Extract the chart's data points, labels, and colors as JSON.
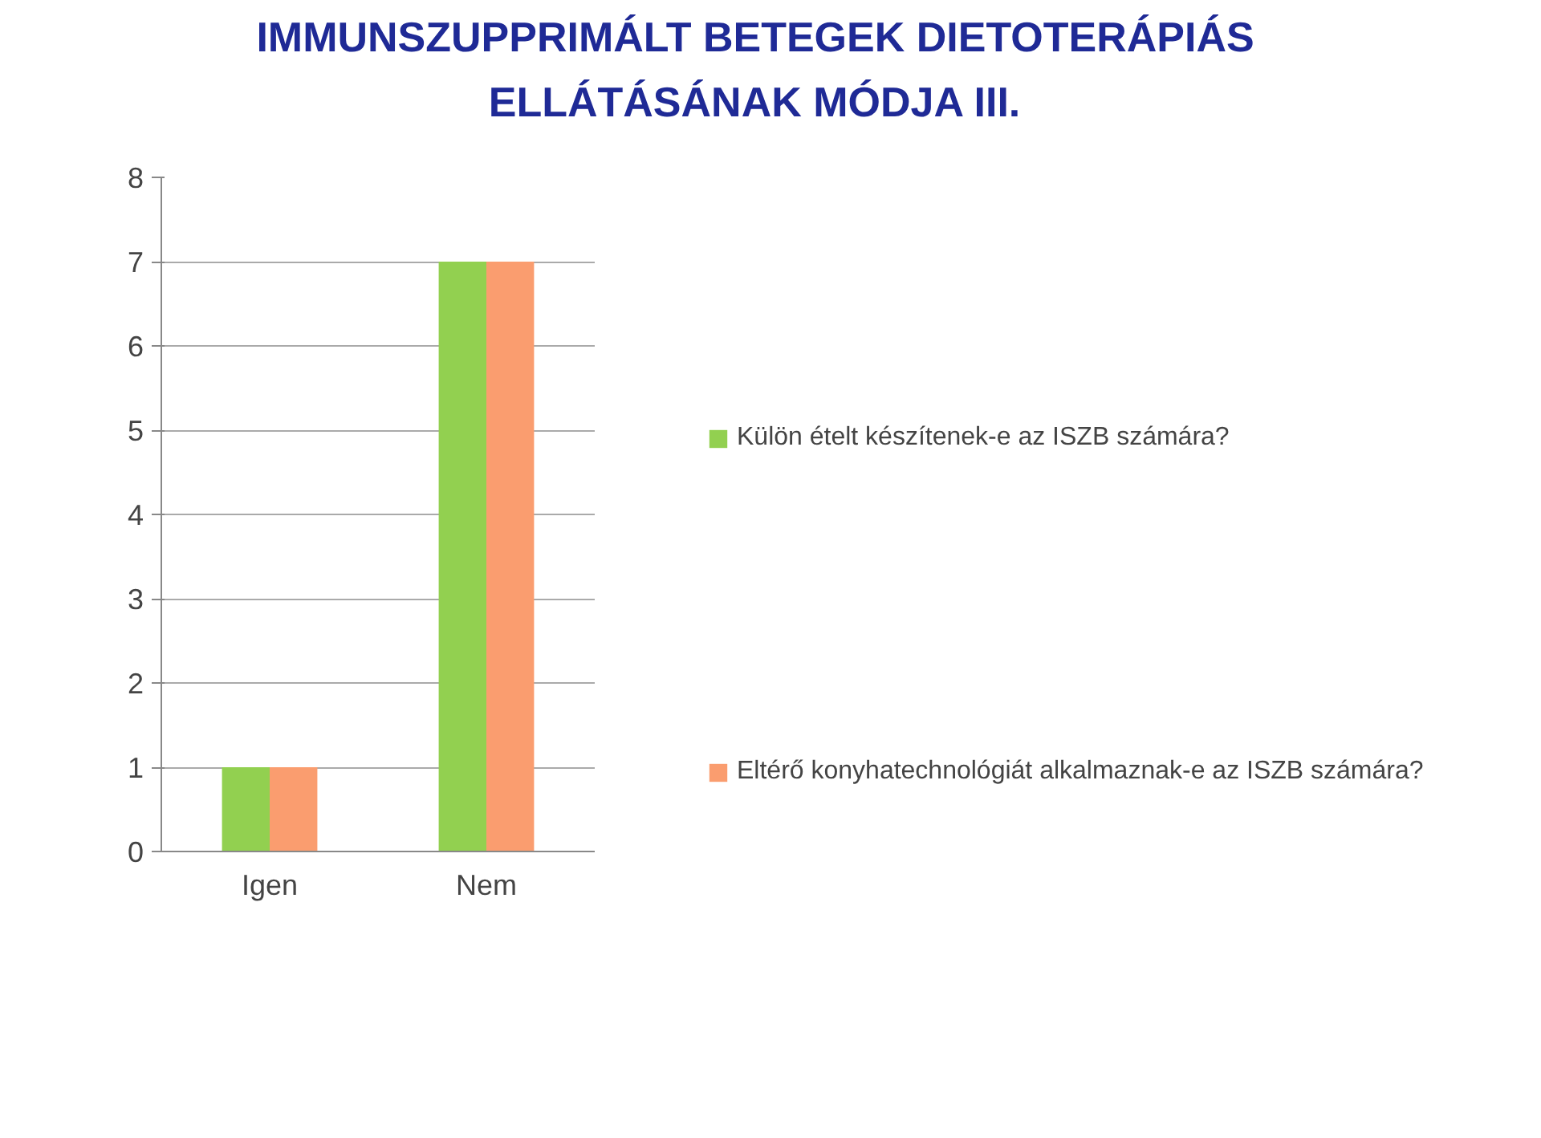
{
  "chart_data": {
    "type": "bar",
    "title": "IMMUNSZUPPRIMÁLT BETEGEK DIETOTERÁPIÁS\nELLÁTÁSÁNAK MÓDJA III.",
    "categories": [
      "Igen",
      "Nem"
    ],
    "series": [
      {
        "name": "Külön ételt készítenek-e az ISZB számára?",
        "color": "#92d050",
        "values": [
          1,
          7
        ]
      },
      {
        "name": "Eltérő konyhatechnológiát alkalmaznak-e az ISZB számára?",
        "color": "#fa9d6f",
        "values": [
          1,
          7
        ]
      }
    ],
    "ylim": [
      0,
      8
    ],
    "yticks": [
      0,
      1,
      2,
      3,
      4,
      5,
      6,
      7,
      8
    ],
    "grid": "y",
    "legend": "right"
  }
}
